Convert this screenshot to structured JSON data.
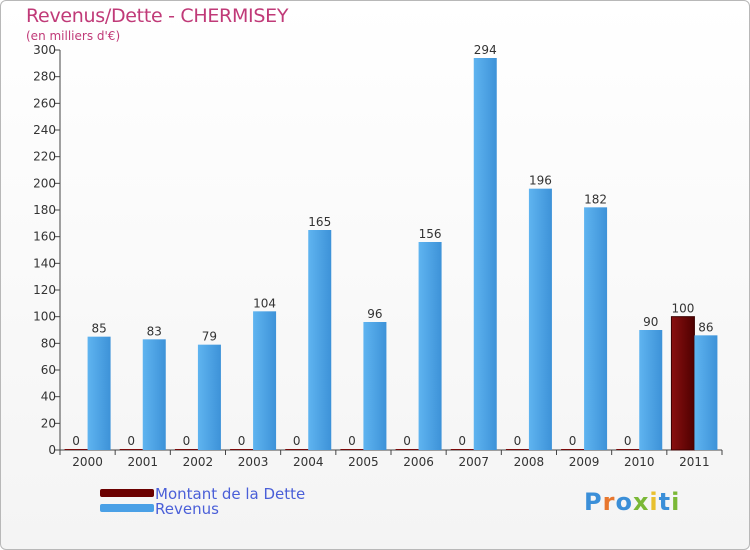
{
  "title": "Revenus/Dette - CHERMISEY",
  "subtitle": "(en milliers d'€)",
  "legend": [
    {
      "label": "Montant de la Dette",
      "color": "#6b0000"
    },
    {
      "label": "Revenus",
      "color": "#4aa0e6"
    }
  ],
  "logo": {
    "letters": [
      "P",
      "r",
      "o",
      "x",
      "i",
      "t",
      "i"
    ],
    "colors": [
      "#3b8fd8",
      "#e8772e",
      "#3b8fd8",
      "#7ab836",
      "#e8c02e",
      "#3b8fd8",
      "#7ab836"
    ]
  },
  "chart_data": {
    "type": "bar",
    "title": "Revenus/Dette - CHERMISEY",
    "ylabel": "(en milliers d'€)",
    "xlabel": "",
    "categories": [
      "2000",
      "2001",
      "2002",
      "2003",
      "2004",
      "2005",
      "2006",
      "2007",
      "2008",
      "2009",
      "2010",
      "2011"
    ],
    "series": [
      {
        "name": "Montant de la Dette",
        "color": "#6b0000",
        "values": [
          0,
          0,
          0,
          0,
          0,
          0,
          0,
          0,
          0,
          0,
          0,
          100
        ]
      },
      {
        "name": "Revenus",
        "color": "#4aa0e6",
        "values": [
          85,
          83,
          79,
          104,
          165,
          96,
          156,
          294,
          196,
          182,
          90,
          86
        ]
      }
    ],
    "ylim": [
      0,
      300
    ],
    "yticks": [
      0,
      20,
      40,
      60,
      80,
      100,
      120,
      140,
      160,
      180,
      200,
      220,
      240,
      260,
      280,
      300
    ],
    "grid": false,
    "legend_position": "bottom-left"
  }
}
